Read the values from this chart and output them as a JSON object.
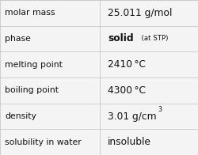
{
  "rows": [
    {
      "label": "molar mass",
      "value_parts": [
        {
          "text": "25.011 g/mol",
          "style": "normal"
        }
      ]
    },
    {
      "label": "phase",
      "value_parts": [
        {
          "text": "solid",
          "style": "bold"
        },
        {
          "text": "  (at STP)",
          "style": "small"
        }
      ]
    },
    {
      "label": "melting point",
      "value_parts": [
        {
          "text": "2410 °C",
          "style": "normal"
        }
      ]
    },
    {
      "label": "boiling point",
      "value_parts": [
        {
          "text": "4300 °C",
          "style": "normal"
        }
      ]
    },
    {
      "label": "density",
      "value_parts": [
        {
          "text": "3.01 g/cm",
          "style": "normal"
        },
        {
          "text": "3",
          "style": "super"
        }
      ]
    },
    {
      "label": "solubility in water",
      "value_parts": [
        {
          "text": "insoluble",
          "style": "normal"
        }
      ]
    }
  ],
  "col_split": 0.505,
  "bg_color": "#f4f4f4",
  "grid_color": "#c8c8c8",
  "text_color": "#111111",
  "label_fontsize": 7.8,
  "value_fontsize": 8.8,
  "small_fontsize": 6.2,
  "super_fontsize": 5.8
}
